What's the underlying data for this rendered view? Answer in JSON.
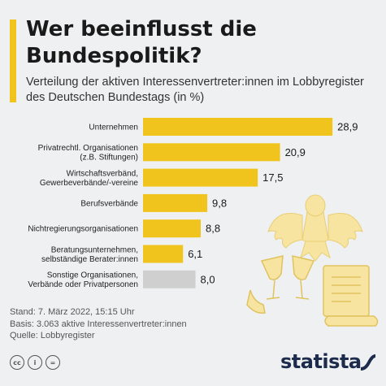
{
  "title": "Wer beeinflusst die Bundespolitik?",
  "subtitle": "Verteilung der aktiven Interessenvertreter:innen im Lobbyregister des Deutschen Bundestags (in %)",
  "chart_data": {
    "type": "bar",
    "orientation": "horizontal",
    "categories": [
      [
        "Unternehmen"
      ],
      [
        "Privatrechtl. Organisationen",
        "(z.B. Stiftungen)"
      ],
      [
        "Wirtschaftsverbänd,",
        "Gewerbeverbände/-vereine"
      ],
      [
        "Berufsverbände"
      ],
      [
        "Nichtregierungsorganisationen"
      ],
      [
        "Beratungsunternehmen,",
        "selbständige Berater:innen"
      ],
      [
        "Sonstige Organisationen,",
        "Verbände oder Privatpersonen"
      ]
    ],
    "values": [
      28.9,
      20.9,
      17.5,
      9.8,
      8.8,
      6.1,
      8.0
    ],
    "value_labels": [
      "28,9",
      "20,9",
      "17,5",
      "9,8",
      "8,8",
      "6,1",
      "8,0"
    ],
    "bar_colors": [
      "#f0c41c",
      "#f0c41c",
      "#f0c41c",
      "#f0c41c",
      "#f0c41c",
      "#f0c41c",
      "#cfcfcf"
    ],
    "xlim": [
      0,
      30
    ],
    "grid": false,
    "legend": "none"
  },
  "footer": {
    "stand": "Stand: 7. März 2022, 15:15 Uhr",
    "basis": "Basis: 3.063 aktive Interessenvertreter:innen",
    "quelle": "Quelle: Lobbyregister"
  },
  "brand": "statista",
  "icons": [
    "cc-icon",
    "by-icon",
    "nd-icon",
    "eagle-icon",
    "champagne-glasses-icon",
    "document-scroll-icon",
    "statista-logo-icon"
  ],
  "colors": {
    "accent": "#f0c41c",
    "other": "#cfcfcf",
    "brand": "#1d2b4c",
    "deco": "#f6e4a0"
  }
}
